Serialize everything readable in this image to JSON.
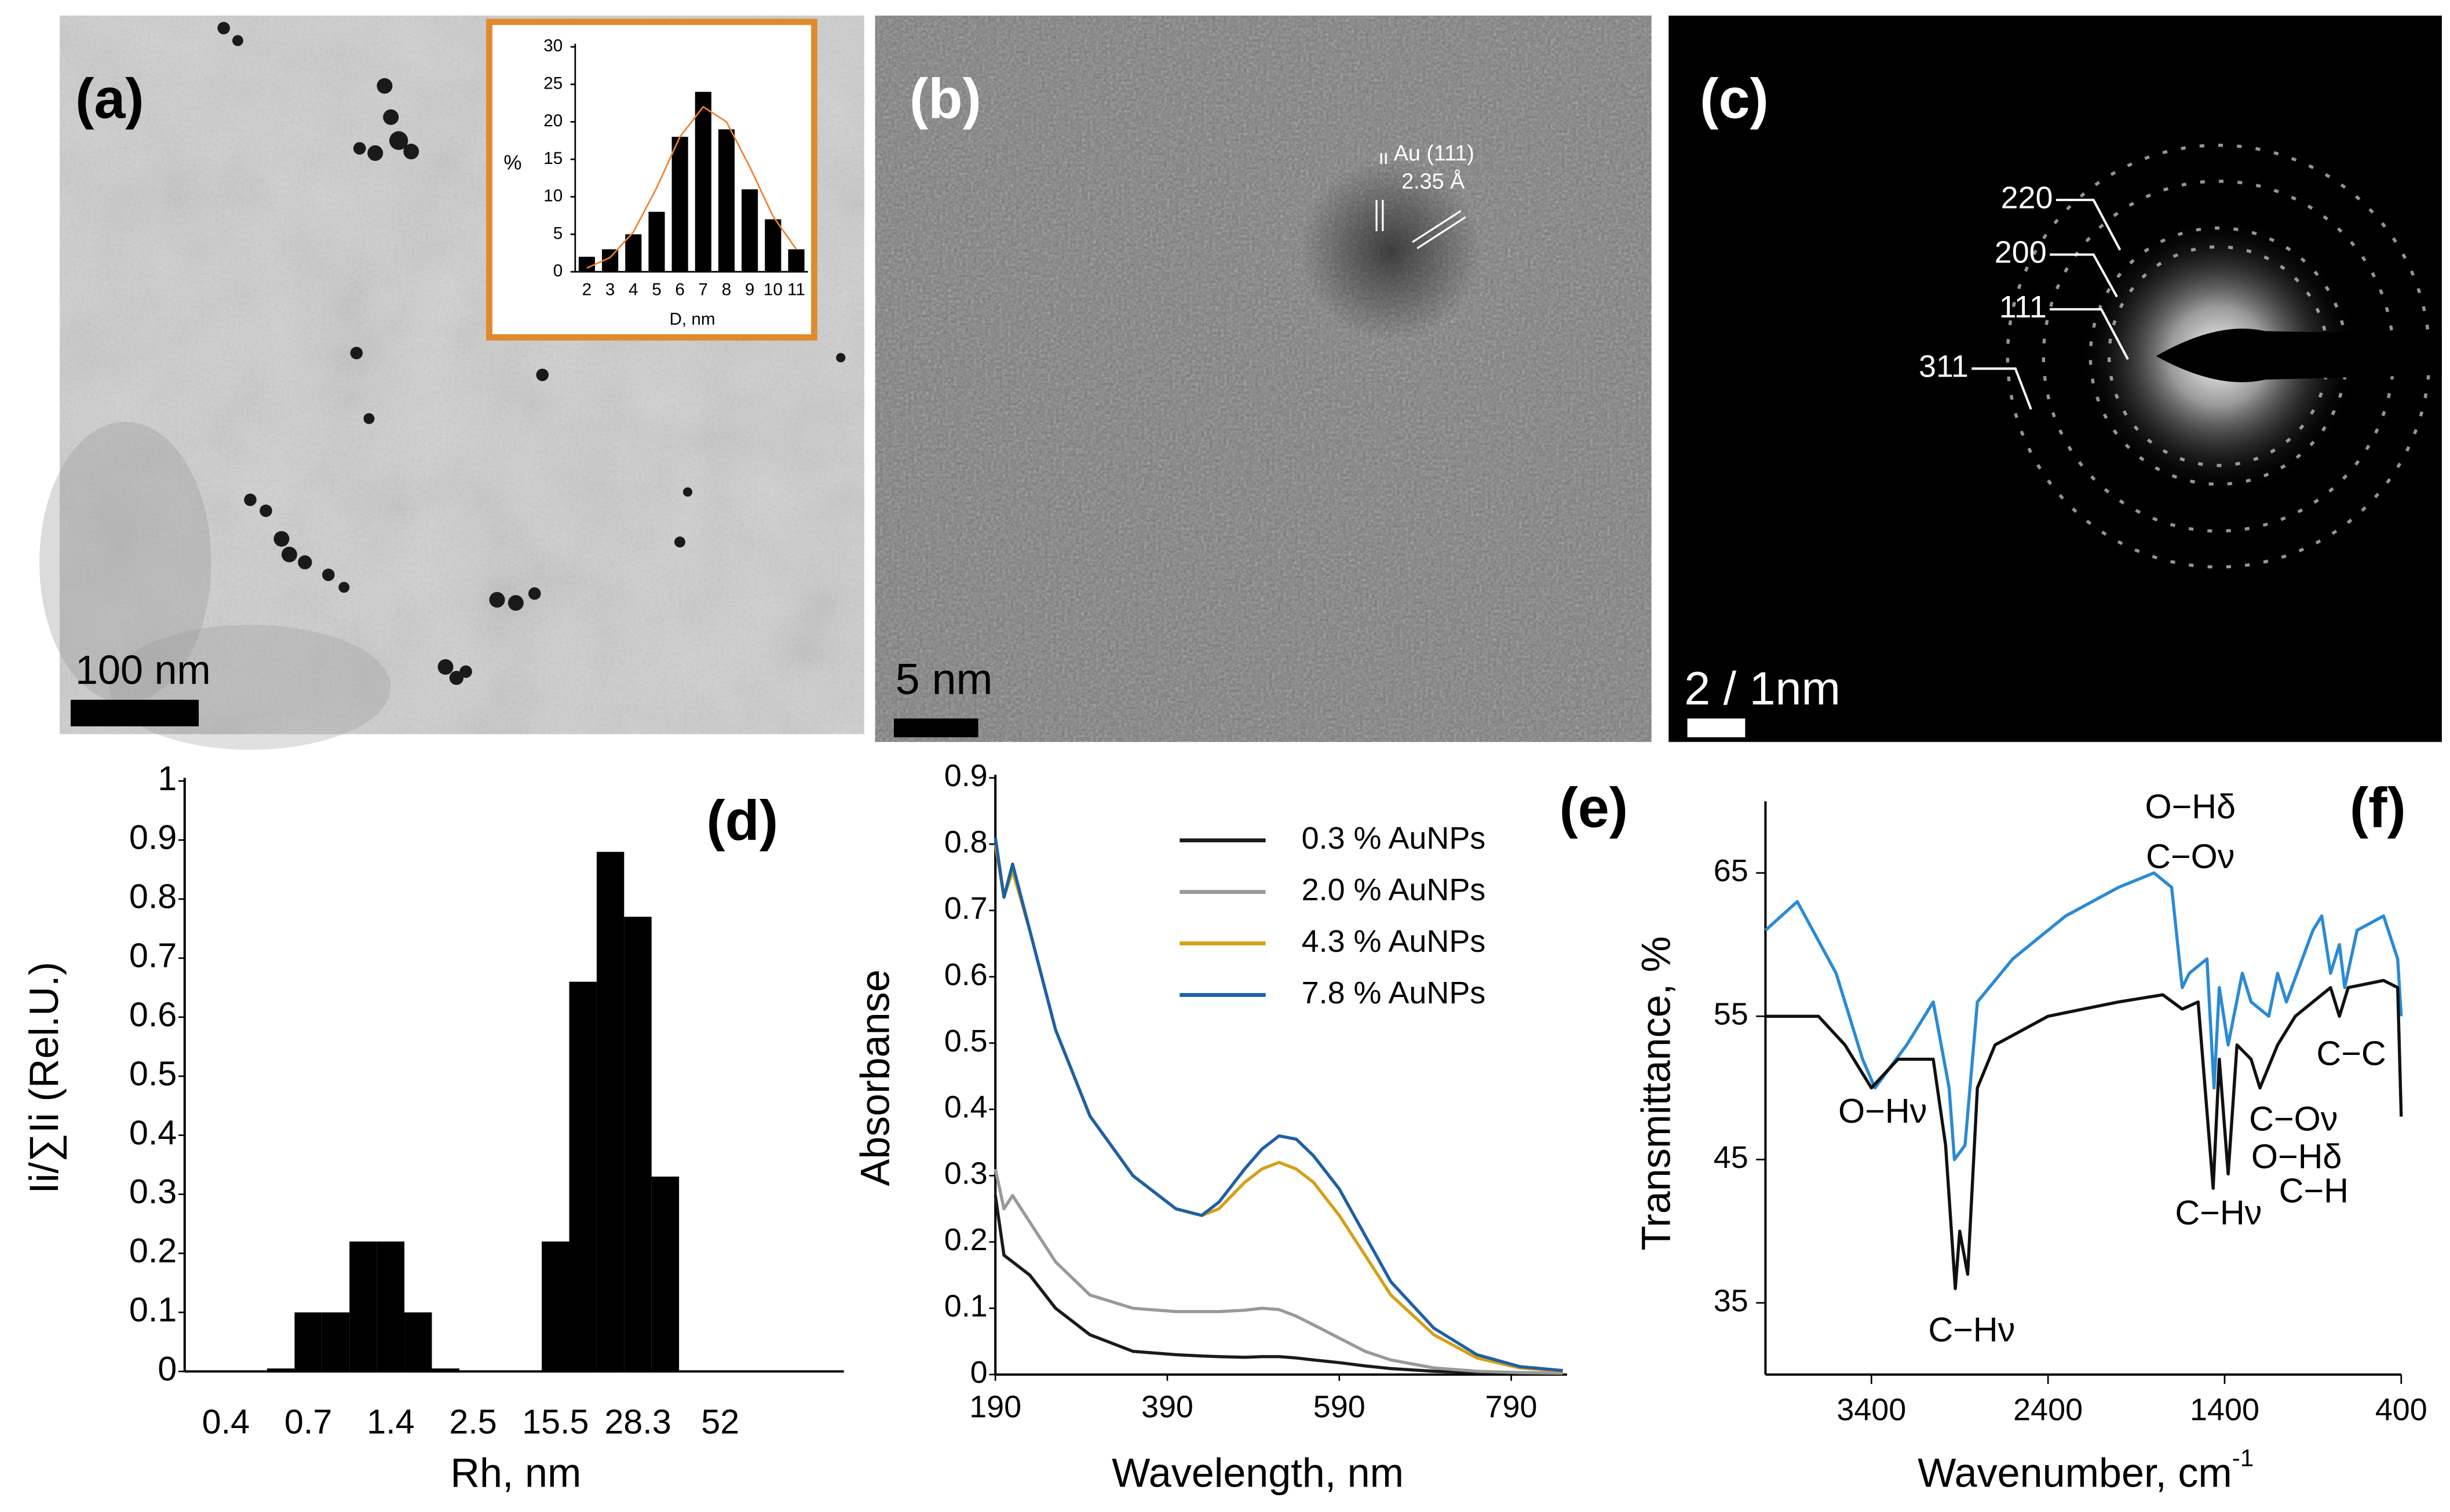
{
  "panel_labels": [
    "(a)",
    "(b)",
    "(c)",
    "(d)",
    "(e)",
    "(f)"
  ],
  "images": {
    "a": {
      "scale_bar": "100 nm"
    },
    "b": {
      "scale_bar": "5 nm",
      "annotation_1": "Au (111)",
      "annotation_2": "2.35 Å"
    },
    "c": {
      "scale_bar": "2 / 1nm",
      "rings": [
        "220",
        "200",
        "111",
        "311"
      ]
    }
  },
  "chart_data": [
    {
      "type": "bar",
      "xlabel": "D, nm",
      "ylabel": "%",
      "categories": [
        "2",
        "3",
        "4",
        "5",
        "6",
        "7",
        "8",
        "9",
        "10",
        "11"
      ],
      "values": [
        2,
        3,
        5,
        8,
        18,
        24,
        19,
        11,
        7,
        3
      ],
      "color": "#000000",
      "fit": {
        "color": "#f08030",
        "values": [
          0.5,
          1.9,
          5.3,
          11.2,
          18,
          22,
          20,
          14,
          7.4,
          3
        ]
      },
      "ylim": [
        0,
        30
      ],
      "yticks": [
        0,
        5,
        10,
        15,
        20,
        25,
        30
      ],
      "grid": false
    },
    {
      "type": "bar",
      "xlabel": "Rh, nm",
      "ylabel": "Ii/∑Ii (Rel.U.)",
      "categories": [
        null,
        "0.4",
        null,
        null,
        "0.7",
        null,
        null,
        "1.4",
        null,
        null,
        "2.5",
        null,
        null,
        "15.5",
        null,
        null,
        "28.3",
        null,
        null,
        "52",
        null,
        null,
        null,
        null
      ],
      "values": [
        0,
        0,
        0,
        0.005,
        0.1,
        0.1,
        0.22,
        0.22,
        0.1,
        0.005,
        0,
        0,
        0,
        0.22,
        0.66,
        0.88,
        0.77,
        0.33,
        0,
        0,
        0,
        0,
        0,
        0
      ],
      "color": "#000000",
      "ylim": [
        0,
        1
      ],
      "yticks": [
        0,
        0.1,
        0.2,
        0.3,
        0.4,
        0.5,
        0.6,
        0.7,
        0.8,
        0.9,
        1
      ],
      "grid": false
    },
    {
      "type": "line",
      "xlabel": "Wavelength, nm",
      "ylabel": "Absorbanse",
      "x": [
        190,
        200,
        210,
        230,
        260,
        300,
        350,
        400,
        430,
        450,
        480,
        500,
        520,
        540,
        560,
        590,
        620,
        650,
        700,
        750,
        800,
        850
      ],
      "series": [
        {
          "name": "0.3 % AuNPs",
          "color": "#1a1a1a",
          "values": [
            0.27,
            0.18,
            0.17,
            0.15,
            0.1,
            0.06,
            0.035,
            0.03,
            0.028,
            0.027,
            0.026,
            0.027,
            0.027,
            0.025,
            0.022,
            0.018,
            0.013,
            0.009,
            0.005,
            0.003,
            0.002,
            0.002
          ]
        },
        {
          "name": "2.0 % AuNPs",
          "color": "#999999",
          "values": [
            0.31,
            0.25,
            0.27,
            0.23,
            0.17,
            0.12,
            0.1,
            0.095,
            0.095,
            0.095,
            0.097,
            0.1,
            0.098,
            0.088,
            0.075,
            0.055,
            0.035,
            0.022,
            0.01,
            0.005,
            0.003,
            0.002
          ]
        },
        {
          "name": "4.3 % AuNPs",
          "color": "#d4a017",
          "values": [
            0.8,
            0.72,
            0.76,
            0.67,
            0.52,
            0.39,
            0.3,
            0.25,
            0.24,
            0.25,
            0.29,
            0.31,
            0.32,
            0.31,
            0.29,
            0.24,
            0.18,
            0.12,
            0.06,
            0.025,
            0.01,
            0.005
          ]
        },
        {
          "name": "7.8 % AuNPs",
          "color": "#1f5fa6",
          "values": [
            0.81,
            0.72,
            0.77,
            0.67,
            0.52,
            0.39,
            0.3,
            0.25,
            0.24,
            0.26,
            0.31,
            0.34,
            0.36,
            0.355,
            0.33,
            0.28,
            0.21,
            0.14,
            0.07,
            0.03,
            0.012,
            0.006
          ]
        }
      ],
      "xlim": [
        190,
        855
      ],
      "xticks": [
        190,
        390,
        590,
        790
      ],
      "ylim": [
        0,
        0.9
      ],
      "yticks": [
        0,
        0.1,
        0.2,
        0.3,
        0.4,
        0.5,
        0.6,
        0.7,
        0.8,
        0.9
      ],
      "legend": "upper right",
      "grid": false
    },
    {
      "type": "line",
      "xlabel": "Wavenumber, cm",
      "xlabel_sup": "-1",
      "ylabel": "Transmittance, %",
      "series": [
        {
          "color": "#2a8ad4",
          "x": [
            4000,
            3820,
            3600,
            3450,
            3380,
            3200,
            3050,
            2960,
            2930,
            2870,
            2800,
            2600,
            2300,
            2000,
            1800,
            1700,
            1640,
            1600,
            1500,
            1460,
            1430,
            1380,
            1300,
            1250,
            1150,
            1100,
            1050,
            900,
            850,
            800,
            750,
            720,
            650,
            500,
            420,
            400
          ],
          "values": [
            61,
            63,
            58,
            52,
            50,
            53,
            56,
            50,
            45,
            46,
            56,
            59,
            62,
            64,
            65,
            64,
            57,
            58,
            59,
            50,
            57,
            53,
            58,
            56,
            55,
            58,
            56,
            61,
            62,
            58,
            60,
            57,
            61,
            62,
            59,
            55
          ]
        },
        {
          "color": "#111111",
          "x": [
            4000,
            3700,
            3550,
            3400,
            3250,
            3050,
            2980,
            2925,
            2900,
            2855,
            2800,
            2700,
            2400,
            2000,
            1750,
            1640,
            1550,
            1465,
            1430,
            1380,
            1330,
            1250,
            1200,
            1100,
            1000,
            900,
            800,
            750,
            700,
            500,
            420,
            400
          ],
          "values": [
            55,
            55,
            53,
            50,
            52,
            52,
            46,
            36,
            40,
            37,
            50,
            53,
            55,
            56,
            56.5,
            55.5,
            56,
            43,
            52,
            44,
            53,
            52,
            50,
            53,
            55,
            56,
            57,
            55,
            57,
            57.5,
            57,
            48
          ]
        }
      ],
      "xlim": [
        4000,
        400
      ],
      "xticks": [
        3400,
        2400,
        1400,
        400
      ],
      "ylim": [
        30,
        70
      ],
      "yticks": [
        35,
        45,
        55,
        65
      ],
      "annotations": [
        "O−Hδ",
        "C−Oν",
        "O−Hν",
        "C−Hν",
        "C−Hν",
        "C−Oν",
        "O−Hδ",
        "C−H",
        "C−C"
      ],
      "grid": false
    }
  ]
}
